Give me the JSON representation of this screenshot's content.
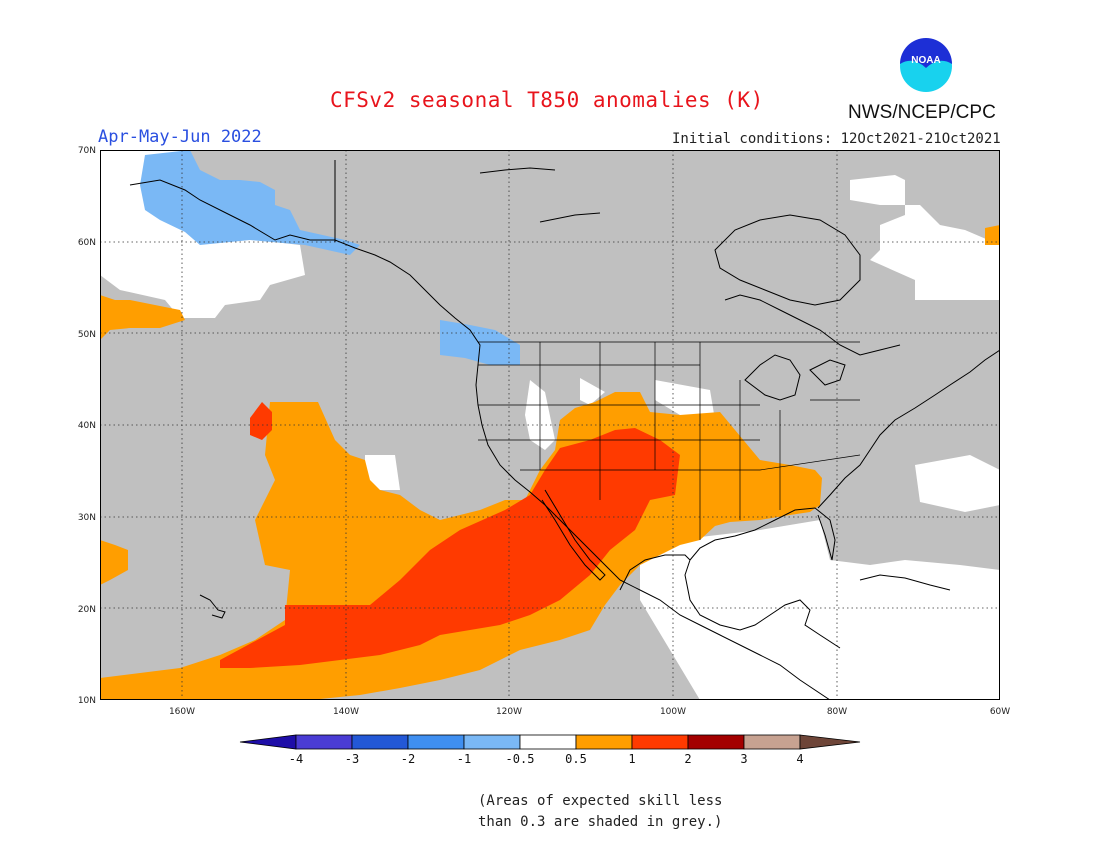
{
  "title": "CFSv2 seasonal T850 anomalies (K)",
  "season": "Apr-May-Jun 2022",
  "initial_conditions": "Initial conditions: 12Oct2021-21Oct2021",
  "agency": "NWS/NCEP/CPC",
  "logo_text": "NOAA",
  "lat_labels": [
    "70N",
    "60N",
    "50N",
    "40N",
    "30N",
    "20N",
    "10N"
  ],
  "lon_labels": [
    "160W",
    "140W",
    "120W",
    "100W",
    "80W",
    "60W"
  ],
  "colorbar": {
    "tick_labels": [
      "-4",
      "-3",
      "-2",
      "-1",
      "-0.5",
      "0.5",
      "1",
      "2",
      "3",
      "4"
    ],
    "colors": [
      "#1e0ea8",
      "#4a3cd4",
      "#2358d6",
      "#3f8ff0",
      "#7ab8f5",
      "#ffffff",
      "#ff9e00",
      "#ff3a00",
      "#a30000",
      "#c7a291",
      "#6e4538"
    ]
  },
  "legend_note": [
    "(Areas of expected skill less",
    "than 0.3 are shaded in grey.)"
  ],
  "map_colors": {
    "grey": "#c0c0c0",
    "white": "#ffffff",
    "light_blue": "#7ab8f5",
    "orange": "#ff9e00",
    "red_orange": "#ff3a00"
  }
}
